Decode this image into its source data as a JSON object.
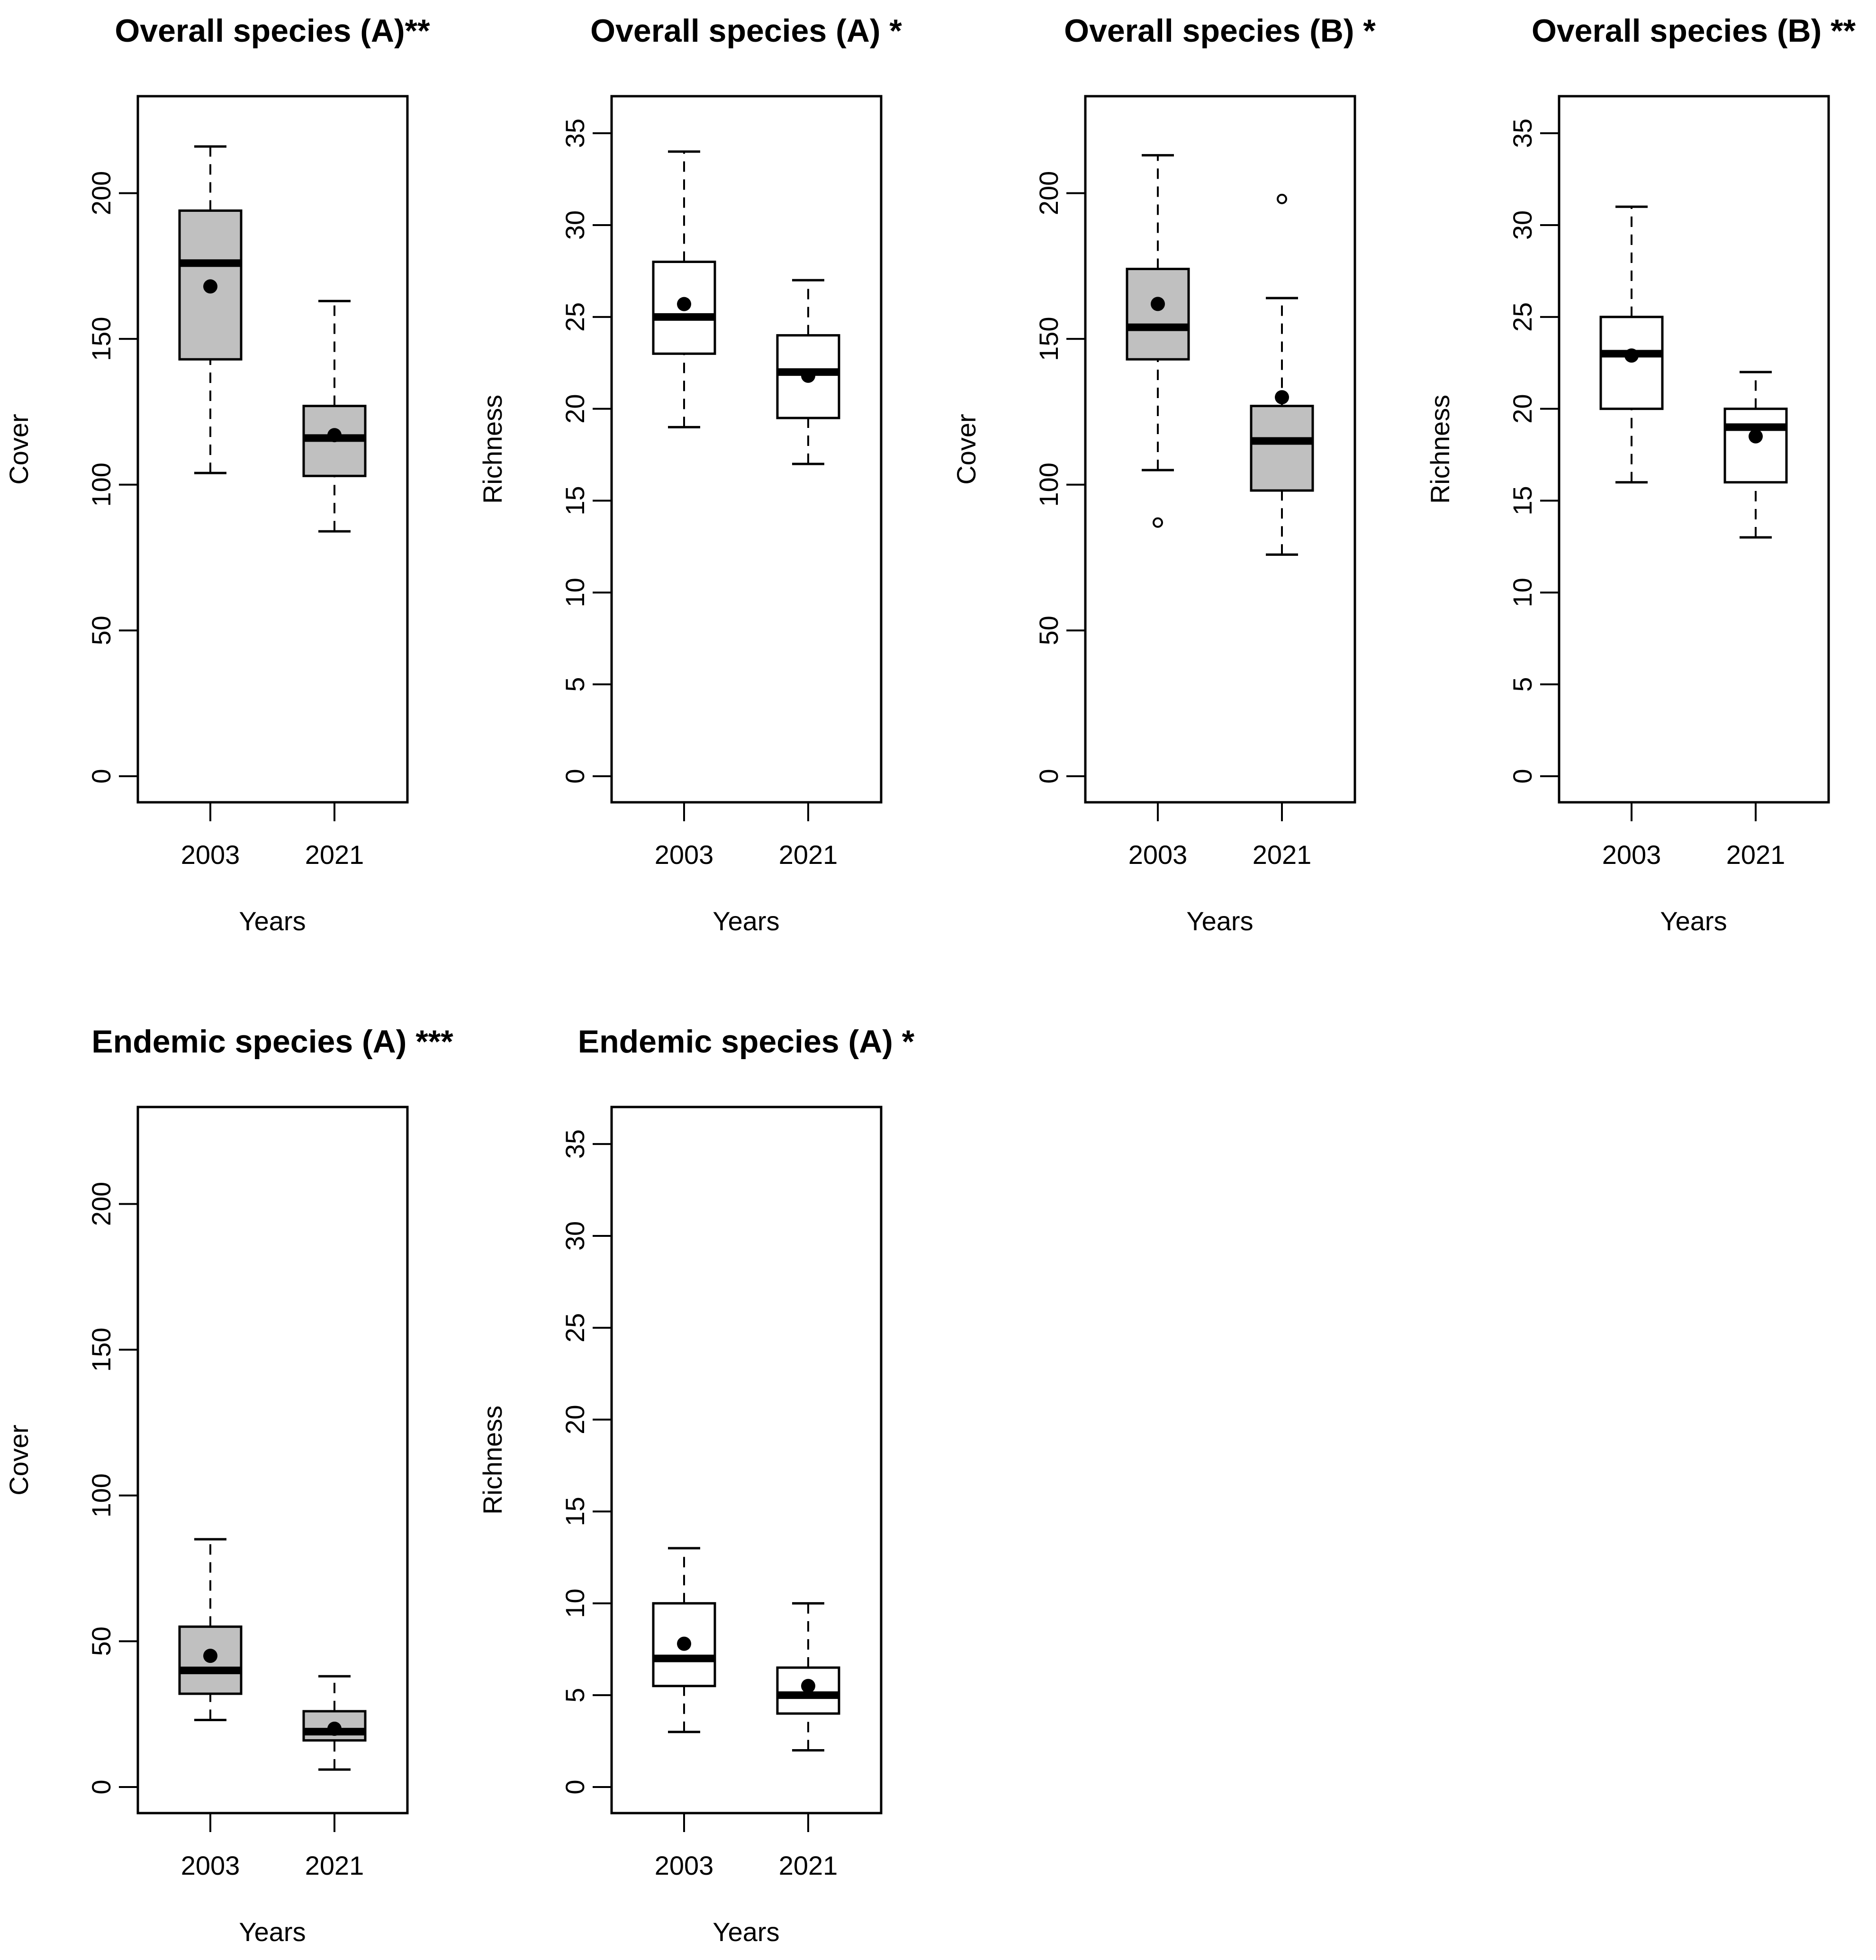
{
  "chart_data": [
    {
      "type": "box",
      "title": "Overall species (A)**",
      "xlabel": "Years",
      "ylabel": "Cover",
      "ylim": [
        0,
        230
      ],
      "yticks": [
        0,
        50,
        100,
        150,
        200
      ],
      "fill": "#c0c0c0",
      "categories": [
        "2003",
        "2021"
      ],
      "boxes": [
        {
          "whisker_low": 104,
          "q1": 143,
          "median": 176,
          "q3": 194,
          "whisker_high": 216,
          "mean": 168,
          "outliers": []
        },
        {
          "whisker_low": 84,
          "q1": 103,
          "median": 116,
          "q3": 127,
          "whisker_high": 163,
          "mean": 117,
          "outliers": []
        }
      ]
    },
    {
      "type": "box",
      "title": "Overall species (A) *",
      "xlabel": "Years",
      "ylabel": "Richness",
      "ylim": [
        0,
        36.5
      ],
      "yticks": [
        0,
        5,
        10,
        15,
        20,
        25,
        30,
        35
      ],
      "fill": "#ffffff",
      "categories": [
        "2003",
        "2021"
      ],
      "boxes": [
        {
          "whisker_low": 19,
          "q1": 23,
          "median": 25,
          "q3": 28,
          "whisker_high": 34,
          "mean": 25.7,
          "outliers": []
        },
        {
          "whisker_low": 17,
          "q1": 19.5,
          "median": 22,
          "q3": 24,
          "whisker_high": 27,
          "mean": 21.8,
          "outliers": []
        }
      ]
    },
    {
      "type": "box",
      "title": "Overall species (B) *",
      "xlabel": "Years",
      "ylabel": "Cover",
      "ylim": [
        0,
        230
      ],
      "yticks": [
        0,
        50,
        100,
        150,
        200
      ],
      "fill": "#c0c0c0",
      "categories": [
        "2003",
        "2021"
      ],
      "boxes": [
        {
          "whisker_low": 105,
          "q1": 143,
          "median": 154,
          "q3": 174,
          "whisker_high": 213,
          "mean": 162,
          "outliers": [
            87
          ]
        },
        {
          "whisker_low": 76,
          "q1": 98,
          "median": 115,
          "q3": 127,
          "whisker_high": 164,
          "mean": 130,
          "outliers": [
            198
          ]
        }
      ]
    },
    {
      "type": "box",
      "title": "Overall species (B) **",
      "xlabel": "Years",
      "ylabel": "Richness",
      "ylim": [
        0,
        36.5
      ],
      "yticks": [
        0,
        5,
        10,
        15,
        20,
        25,
        30,
        35
      ],
      "fill": "#ffffff",
      "categories": [
        "2003",
        "2021"
      ],
      "boxes": [
        {
          "whisker_low": 16,
          "q1": 20,
          "median": 23,
          "q3": 25,
          "whisker_high": 31,
          "mean": 22.9,
          "outliers": []
        },
        {
          "whisker_low": 13,
          "q1": 16,
          "median": 19,
          "q3": 20,
          "whisker_high": 22,
          "mean": 18.5,
          "outliers": []
        }
      ]
    },
    {
      "type": "box",
      "title": "Endemic species (A) ***",
      "xlabel": "Years",
      "ylabel": "Cover",
      "ylim": [
        0,
        230
      ],
      "yticks": [
        0,
        50,
        100,
        150,
        200
      ],
      "fill": "#c0c0c0",
      "categories": [
        "2003",
        "2021"
      ],
      "boxes": [
        {
          "whisker_low": 23,
          "q1": 32,
          "median": 40,
          "q3": 55,
          "whisker_high": 85,
          "mean": 45,
          "outliers": []
        },
        {
          "whisker_low": 6,
          "q1": 16,
          "median": 19,
          "q3": 26,
          "whisker_high": 38,
          "mean": 20,
          "outliers": []
        }
      ]
    },
    {
      "type": "box",
      "title": "Endemic species (A) *",
      "xlabel": "Years",
      "ylabel": "Richness",
      "ylim": [
        0,
        36.5
      ],
      "yticks": [
        0,
        5,
        10,
        15,
        20,
        25,
        30,
        35
      ],
      "fill": "#ffffff",
      "categories": [
        "2003",
        "2021"
      ],
      "boxes": [
        {
          "whisker_low": 3,
          "q1": 5.5,
          "median": 7,
          "q3": 10,
          "whisker_high": 13,
          "mean": 7.8,
          "outliers": []
        },
        {
          "whisker_low": 2,
          "q1": 4,
          "median": 5,
          "q3": 6.5,
          "whisker_high": 10,
          "mean": 5.5,
          "outliers": []
        }
      ]
    }
  ]
}
